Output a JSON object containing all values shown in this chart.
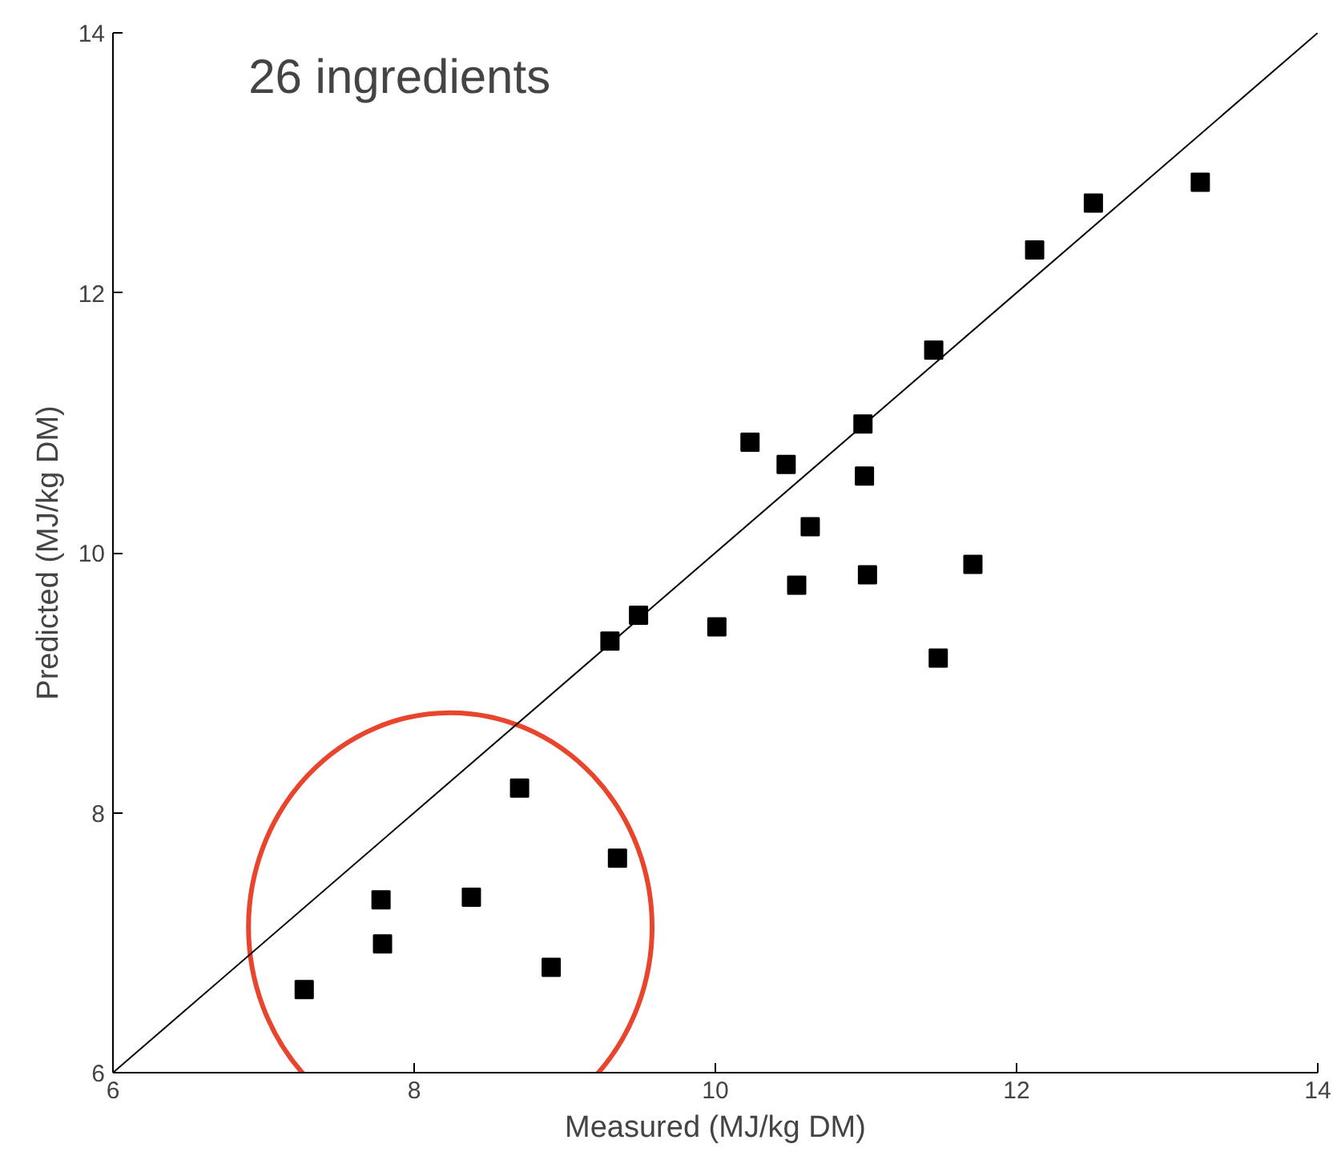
{
  "chart_data": {
    "type": "scatter",
    "xlabel": "Measured (MJ/kg DM)",
    "ylabel": "Predicted (MJ/kg DM)",
    "annotations": [
      "26 ingredients"
    ],
    "xlim": [
      6,
      14
    ],
    "ylim": [
      6,
      14
    ],
    "xticks": [
      6,
      8,
      10,
      12,
      14
    ],
    "yticks": [
      6,
      8,
      10,
      12,
      14
    ],
    "grid": false,
    "series": [
      {
        "color": "#000000",
        "marker": "square",
        "x": [
          7.27,
          7.78,
          7.79,
          8.38,
          8.7,
          8.91,
          9.35,
          9.3,
          9.49,
          10.01,
          10.23,
          10.47,
          10.54,
          10.63,
          10.98,
          10.99,
          11.01,
          11.48,
          11.45,
          11.71,
          12.12,
          12.51,
          13.22
        ],
        "values": [
          6.64,
          7.33,
          6.99,
          7.35,
          8.19,
          6.81,
          7.65,
          9.32,
          9.52,
          9.43,
          10.85,
          10.68,
          9.75,
          10.2,
          10.99,
          10.59,
          9.83,
          9.19,
          11.56,
          9.91,
          12.33,
          12.69,
          12.85
        ]
      },
      {
        "type": "line",
        "color": "#000000",
        "x": [
          6,
          14
        ],
        "values": [
          6,
          14
        ]
      }
    ]
  }
}
